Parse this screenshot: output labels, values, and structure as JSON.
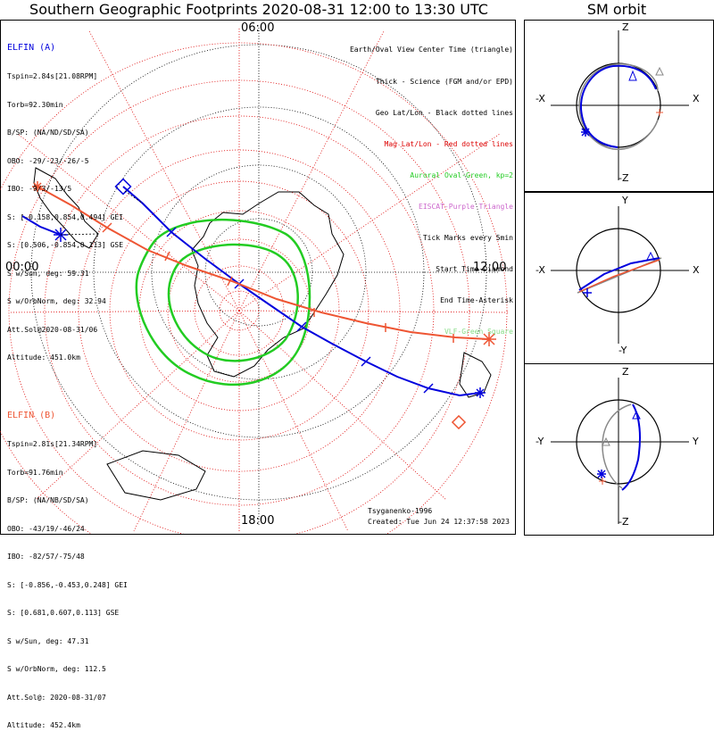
{
  "title": "Southern Geographic Footprints 2020-08-31 12:00 to 13:30 UTC",
  "sm_title": "SM orbit",
  "colors": {
    "elfin_a": "#0000dd",
    "elfin_b": "#ee5533",
    "aurora": "#22cc22",
    "geo_grid": "#000000",
    "mag_grid": "#dd0000",
    "eiscat": "#cc66cc",
    "vlf": "#88dd88"
  },
  "clock_labels": {
    "top": "06:00",
    "left": "00:00",
    "right": "12:00",
    "bottom": "18:00"
  },
  "legend": [
    {
      "text": "Earth/Oval View Center Time (triangle)",
      "color": "#000000"
    },
    {
      "text": "Thick - Science (FGM and/or EPD)",
      "color": "#000000"
    },
    {
      "text": "Geo Lat/Lon - Black dotted lines",
      "color": "#000000"
    },
    {
      "text": "Mag Lat/Lon - Red dotted lines",
      "color": "#dd0000"
    },
    {
      "text": "Auroral Oval-Green, kp=2",
      "color": "#22cc22"
    },
    {
      "text": "EISCAT-Purple Triangle",
      "color": "#cc66cc"
    },
    {
      "text": "Tick Marks every 5min",
      "color": "#000000"
    },
    {
      "text": "Start Time-Diamond",
      "color": "#000000"
    },
    {
      "text": "End Time-Asterisk",
      "color": "#000000"
    },
    {
      "text": "VLF-Green Square",
      "color": "#88dd88"
    }
  ],
  "elfin_a": {
    "name": "ELFIN (A)",
    "lines": [
      "Tspin=2.84s[21.08RPM]",
      "Torb=92.30min",
      "B/SP: (NA/ND/SD/SA)",
      "OBO: -29/-23/-26/-5",
      "IBO: -9/3/-13/5",
      "S: [-0.158,0.854,0.494] GEI",
      "S: [0.506,-0.854,0.113] GSE",
      "S w/Sun, deg: 59.31",
      "S w/OrbNorm, deg: 32.94",
      "Att.Sol@2020-08-31/06",
      "Altitude: 451.0km"
    ]
  },
  "elfin_b": {
    "name": "ELFIN (B)",
    "lines": [
      "Tspin=2.81s[21.34RPM]",
      "Torb=91.76min",
      "B/SP: (NA/NB/SD/SA)",
      "OBO: -43/19/-46/24",
      "IBO: -82/57/-75/48",
      "S: [-0.856,-0.453,0.248] GEI",
      "S: [0.681,0.607,0.113] GSE",
      "S w/Sun, deg: 47.31",
      "S w/OrbNorm, deg: 112.5",
      "Att.Sol@: 2020-08-31/07",
      "Altitude: 452.4km"
    ]
  },
  "footer": {
    "model": "Tsyganenko-1996",
    "created": "Created: Tue Jun 24 12:37:58 2023"
  },
  "sm_panels": [
    {
      "up": "Z",
      "down": "-Z",
      "left": "-X",
      "right": "X"
    },
    {
      "up": "Y",
      "down": "-Y",
      "left": "-X",
      "right": "X"
    },
    {
      "up": "Z",
      "down": "-Z",
      "left": "-Y",
      "right": "Y"
    }
  ]
}
